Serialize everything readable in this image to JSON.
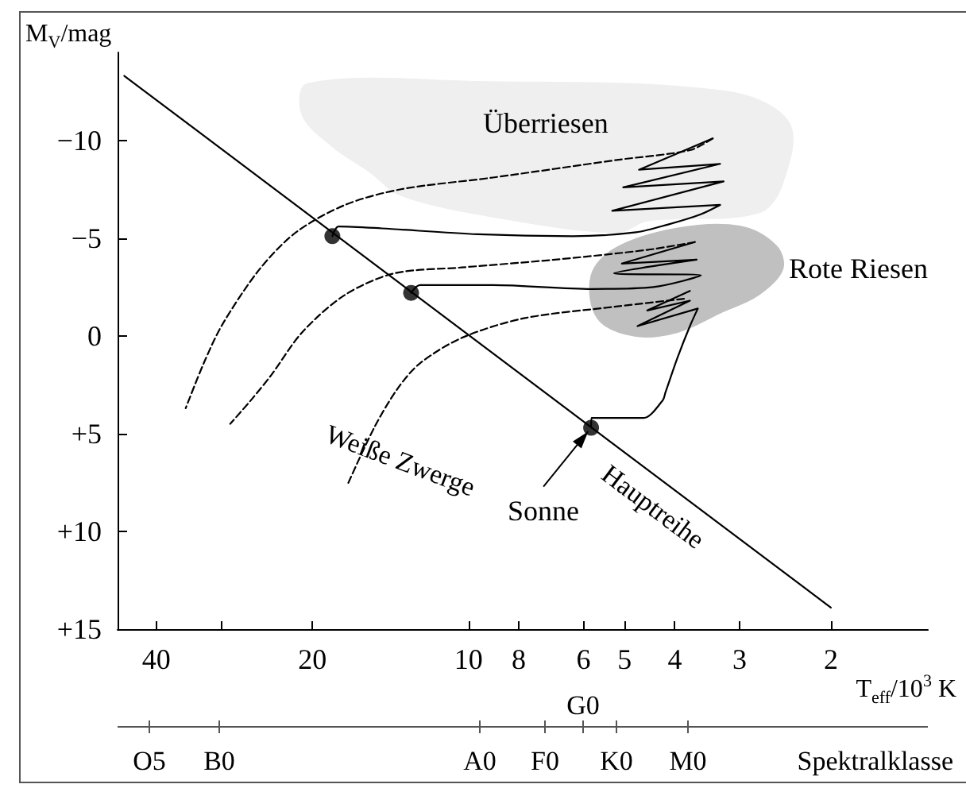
{
  "chart_data": {
    "type": "line",
    "xlabel": "T$_{eff}$/10$^{3}$ K",
    "ylabel": "M$_{V}$/mag",
    "log": "x",
    "grid": false,
    "legend": false,
    "line_style": "solid",
    "marker": "none",
    "xlim": [
      47.5,
      1.3
    ],
    "xticks": [
      40,
      {
        "value": 30,
        "label": null
      },
      20,
      10,
      8,
      6,
      5,
      4,
      3,
      2
    ],
    "ylim": [
      15,
      -14.5
    ],
    "yticks": [
      {
        "value": -10,
        "label": "−10"
      },
      {
        "value": -5,
        "label": "−5"
      },
      0,
      {
        "value": 5,
        "label": "+5"
      },
      {
        "value": 10,
        "label": "+10"
      },
      {
        "value": 15,
        "label": "+15"
      }
    ],
    "series": [
      {
        "type": "area",
        "name": "Überriesen",
        "color": "#efefef",
        "x": [
          20.4,
          9.6,
          3.18,
          2.41,
          2.48,
          2.76,
          4.52,
          5.17,
          8.97,
          13.5,
          15.5,
          18.3,
          20.9
        ],
        "values": [
          -12.9,
          -13.0,
          -12.5,
          -10.9,
          -7.8,
          -6.3,
          -5.9,
          -5.3,
          -6.1,
          -7.2,
          -8.4,
          -9.7,
          -11.3
        ]
      },
      {
        "type": "area",
        "name": "Rote Riesen",
        "color": "#c0c0c0",
        "x": [
          5.19,
          3.95,
          3.0,
          2.55,
          2.48,
          2.76,
          3.26,
          3.95,
          4.78,
          5.63,
          5.79
        ],
        "values": [
          -4.5,
          -5.5,
          -5.6,
          -4.6,
          -3.4,
          -2.1,
          -1.2,
          -0.2,
          0.0,
          -0.9,
          -3.1
        ]
      },
      {
        "type": "line",
        "color": "#000000",
        "x": [
          46.1,
          2
        ],
        "values": [
          -13.3,
          13.9
        ]
      },
      {
        "type": "line",
        "color": "#000000",
        "x": [
          18.3,
          17.8,
          14.7,
          9.6,
          6.3,
          4.75,
          4.12,
          3.58,
          3.27,
          5.28,
          3.22,
          5.03,
          3.27,
          4.69,
          3.38
        ],
        "values": [
          -5.1,
          -5.6,
          -5.5,
          -5.2,
          -5.1,
          -5.3,
          -5.7,
          -6.2,
          -6.7,
          -6.4,
          -7.9,
          -7.6,
          -8.8,
          -8.5,
          -10.1
        ]
      },
      {
        "type": "line",
        "color": "#000000",
        "x": [
          12.9,
          12.4,
          8.97,
          5.79,
          4.4,
          3.56,
          5.24,
          3.63,
          5.06,
          3.66
        ],
        "values": [
          -2.2,
          -2.6,
          -2.6,
          -2.4,
          -2.5,
          -3.1,
          -3.2,
          -3.9,
          -3.7,
          -4.8
        ]
      },
      {
        "type": "line",
        "color": "#000000",
        "x": [
          5.8,
          5.79,
          4.92,
          4.59,
          4.22,
          4.17,
          3.95,
          3.74,
          3.61,
          4.72,
          3.74,
          4.52,
          3.74
        ],
        "values": [
          4.7,
          4.2,
          4.2,
          4.2,
          3.3,
          2.9,
          1.1,
          -0.5,
          -1.4,
          -0.5,
          -1.8,
          -1.3,
          -2.3
        ]
      },
      {
        "type": "line",
        "color": "#000000",
        "line_style": "dashed",
        "x": [
          3.38,
          3.74,
          5.17,
          8.97,
          13.5,
          17.3,
          21.5,
          25.3,
          29.8,
          32.4,
          35.1
        ],
        "values": [
          -10.1,
          -9.5,
          -9.0,
          -8.1,
          -7.5,
          -6.7,
          -5.3,
          -3.4,
          -0.6,
          1.4,
          3.7
        ]
      },
      {
        "type": "line",
        "color": "#000000",
        "line_style": "dashed",
        "x": [
          3.66,
          4.52,
          6.81,
          10.3,
          13.9,
          17.3,
          20.9,
          24.0,
          26.1,
          28.8
        ],
        "values": [
          -4.8,
          -4.4,
          -3.9,
          -3.5,
          -3.2,
          -2.1,
          -0.2,
          2.0,
          3.2,
          4.5
        ]
      },
      {
        "type": "line",
        "color": "#000000",
        "line_style": "dashed",
        "x": [
          3.84,
          5.19,
          7.82,
          10.3,
          12.4,
          13.7,
          15.2,
          17.1
        ],
        "values": [
          -1.9,
          -1.5,
          -0.9,
          0.1,
          1.4,
          2.7,
          4.7,
          7.6
        ]
      },
      {
        "type": "scatter",
        "color": "#000000",
        "marker": "circle",
        "x": [
          18.3,
          12.9,
          5.8
        ],
        "values": [
          -5.1,
          -2.2,
          4.7
        ]
      }
    ],
    "annotations": [
      "Weiße Zwerge",
      {
        "text": "Sonne",
        "x": 5.8,
        "y": 4.7
      },
      "O5",
      "B0",
      "A0",
      "F0",
      "G0",
      "K0",
      "M0",
      "Spektralklasse",
      "Hauptreihe"
    ]
  }
}
